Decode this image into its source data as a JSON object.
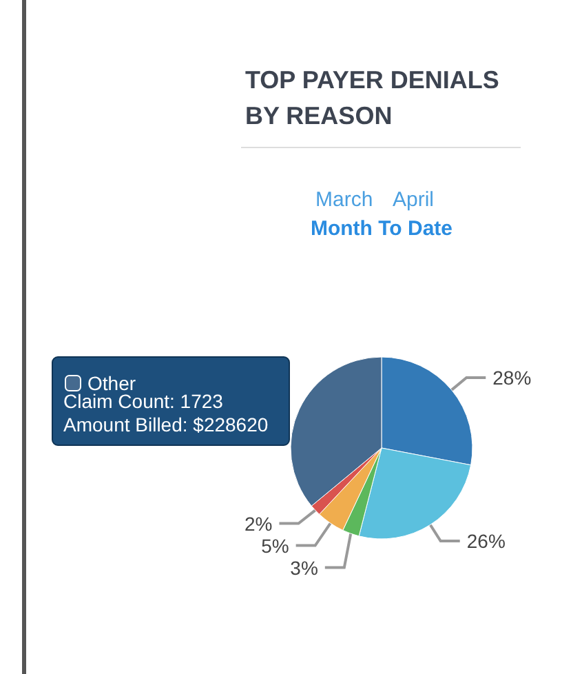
{
  "chart_data": {
    "type": "pie",
    "title": "TOP PAYER DENIALS BY REASON",
    "annotations": [
      "March",
      "April",
      "Month To Date",
      "Claim Count: 1723",
      "Amount Billed: $228620"
    ],
    "categories": [
      null,
      null,
      null,
      null,
      null,
      "Other"
    ],
    "values": [
      28,
      26,
      3,
      5,
      2,
      36
    ],
    "colors": [
      "#337ab7",
      "#5bc0de",
      "#5cb85c",
      "#f0ad4e",
      "#d9534f",
      "#456a8f"
    ],
    "value_labels": [
      "28%",
      "26%",
      "3%",
      "5%",
      "2%",
      null
    ],
    "legend": "left"
  }
}
